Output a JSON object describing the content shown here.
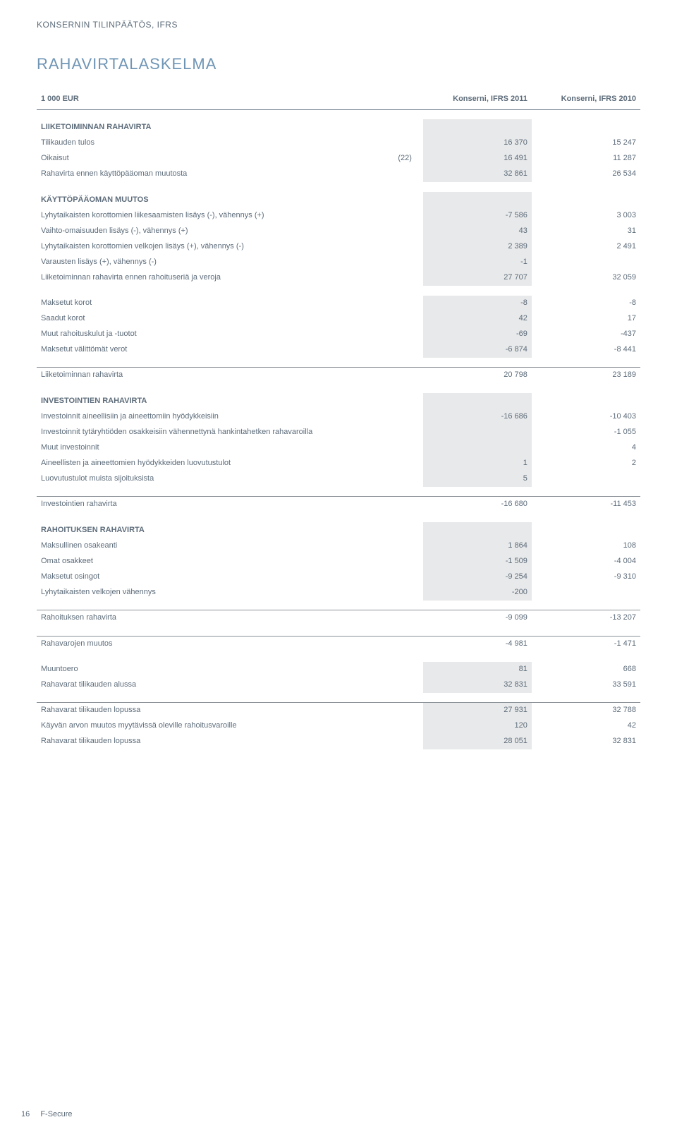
{
  "eyebrow": "KONSERNIN TILINPÄÄTÖS, IFRS",
  "title": "RAHAVIRTALASKELMA",
  "columns": {
    "label": "1 000 EUR",
    "note": "",
    "y1": "Konserni, IFRS 2011",
    "y2": "Konserni, IFRS 2010"
  },
  "sections": [
    {
      "header": "LIIKETOIMINNAN RAHAVIRTA",
      "shaded": true,
      "rows": [
        {
          "label": "Tilikauden tulos",
          "note": "",
          "y1": "16 370",
          "y2": "15 247"
        },
        {
          "label": "Oikaisut",
          "note": "(22)",
          "y1": "16 491",
          "y2": "11 287"
        },
        {
          "label": "Rahavirta ennen käyttöpääoman muutosta",
          "note": "",
          "y1": "32 861",
          "y2": "26 534"
        }
      ]
    },
    {
      "header": "KÄYTTÖPÄÄOMAN MUUTOS",
      "shaded": true,
      "rows": [
        {
          "label": "Lyhytaikaisten korottomien liikesaamisten lisäys (-), vähennys (+)",
          "note": "",
          "y1": "-7 586",
          "y2": "3 003"
        },
        {
          "label": "Vaihto-omaisuuden lisäys (-), vähennys (+)",
          "note": "",
          "y1": "43",
          "y2": "31"
        },
        {
          "label": "Lyhytaikaisten korottomien velkojen lisäys (+), vähennys (-)",
          "note": "",
          "y1": "2 389",
          "y2": "2 491"
        },
        {
          "label": "Varausten lisäys (+), vähennys (-)",
          "note": "",
          "y1": "-1",
          "y2": ""
        },
        {
          "label": "Liiketoiminnan rahavirta ennen rahoituseriä ja veroja",
          "note": "",
          "y1": "27 707",
          "y2": "32 059"
        }
      ]
    },
    {
      "header": "",
      "shaded": true,
      "rows": [
        {
          "label": "Maksetut korot",
          "note": "",
          "y1": "-8",
          "y2": "-8"
        },
        {
          "label": "Saadut korot",
          "note": "",
          "y1": "42",
          "y2": "17"
        },
        {
          "label": "Muut rahoituskulut ja -tuotot",
          "note": "",
          "y1": "-69",
          "y2": "-437"
        },
        {
          "label": "Maksetut välittömät verot",
          "note": "",
          "y1": "-6 874",
          "y2": "-8 441"
        }
      ]
    },
    {
      "header": "",
      "shaded": false,
      "ruleTop": true,
      "rows": [
        {
          "label": "Liiketoiminnan rahavirta",
          "note": "",
          "y1": "20 798",
          "y2": "23 189"
        }
      ]
    },
    {
      "header": "INVESTOINTIEN RAHAVIRTA",
      "shaded": true,
      "rows": [
        {
          "label": "Investoinnit aineellisiin ja aineettomiin hyödykkeisiin",
          "note": "",
          "y1": "-16 686",
          "y2": "-10 403"
        },
        {
          "label": "Investoinnit tytäryhtiöden osakkeisiin vähennettynä hankintahetken rahavaroilla",
          "note": "",
          "y1": "",
          "y2": "-1 055"
        },
        {
          "label": "Muut investoinnit",
          "note": "",
          "y1": "",
          "y2": "4"
        },
        {
          "label": "Aineellisten ja aineettomien hyödykkeiden luovutustulot",
          "note": "",
          "y1": "1",
          "y2": "2"
        },
        {
          "label": "Luovutustulot muista sijoituksista",
          "note": "",
          "y1": "5",
          "y2": ""
        }
      ]
    },
    {
      "header": "",
      "shaded": false,
      "ruleTop": true,
      "rows": [
        {
          "label": "Investointien rahavirta",
          "note": "",
          "y1": "-16 680",
          "y2": "-11 453"
        }
      ]
    },
    {
      "header": "RAHOITUKSEN RAHAVIRTA",
      "shaded": true,
      "rows": [
        {
          "label": "Maksullinen osakeanti",
          "note": "",
          "y1": "1 864",
          "y2": "108"
        },
        {
          "label": "Omat osakkeet",
          "note": "",
          "y1": "-1 509",
          "y2": "-4 004"
        },
        {
          "label": "Maksetut osingot",
          "note": "",
          "y1": "-9 254",
          "y2": "-9 310"
        },
        {
          "label": "Lyhytaikaisten velkojen vähennys",
          "note": "",
          "y1": "-200",
          "y2": ""
        }
      ]
    },
    {
      "header": "",
      "shaded": false,
      "ruleTop": true,
      "rows": [
        {
          "label": "Rahoituksen rahavirta",
          "note": "",
          "y1": "-9 099",
          "y2": "-13 207"
        }
      ]
    },
    {
      "header": "",
      "shaded": false,
      "ruleTop": true,
      "rows": [
        {
          "label": "Rahavarojen muutos",
          "note": "",
          "y1": "-4 981",
          "y2": "-1 471"
        }
      ]
    },
    {
      "header": "",
      "shaded": true,
      "rows": [
        {
          "label": "Muuntoero",
          "note": "",
          "y1": "81",
          "y2": "668"
        },
        {
          "label": "Rahavarat tilikauden alussa",
          "note": "",
          "y1": "32 831",
          "y2": "33 591"
        }
      ]
    },
    {
      "header": "",
      "shaded": true,
      "ruleTop": true,
      "rows": [
        {
          "label": "Rahavarat tilikauden lopussa",
          "note": "",
          "y1": "27 931",
          "y2": "32 788"
        },
        {
          "label": "Käyvän arvon muutos myytävissä oleville rahoitusvaroille",
          "note": "",
          "y1": "120",
          "y2": "42"
        },
        {
          "label": "Rahavarat tilikauden lopussa",
          "note": "",
          "y1": "28 051",
          "y2": "32 831"
        }
      ]
    }
  ],
  "footer": {
    "page": "16",
    "brand": "F-Secure"
  },
  "style": {
    "shade_bg": "#e8e9ea",
    "text_color": "#5d6c7a",
    "title_color": "#6f95b5",
    "rule_color": "#8c9298"
  }
}
